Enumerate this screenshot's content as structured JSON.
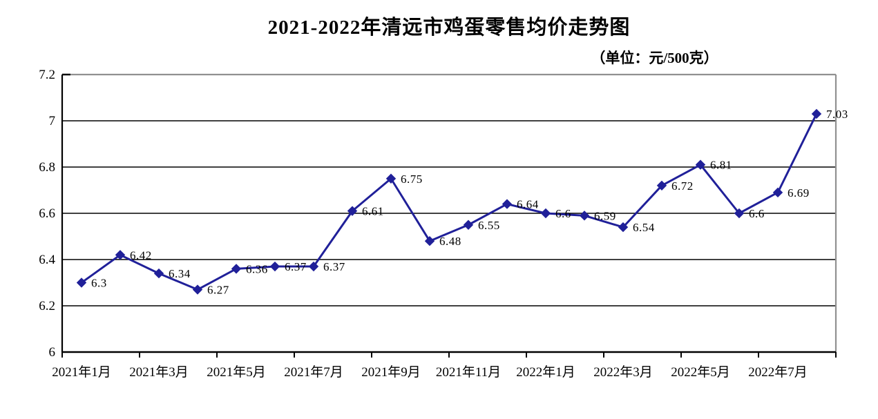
{
  "chart_data": {
    "type": "line",
    "title": "2021-2022年清远市鸡蛋零售均价走势图",
    "unit_label": "（单位：元/500克）",
    "values": [
      6.3,
      6.42,
      6.34,
      6.27,
      6.36,
      6.37,
      6.37,
      6.61,
      6.75,
      6.48,
      6.55,
      6.64,
      6.6,
      6.59,
      6.54,
      6.72,
      6.81,
      6.6,
      6.69,
      7.03
    ],
    "point_labels": [
      "6.3",
      "6.42",
      "6.34",
      "6.27",
      "6.36",
      "6.37",
      "6.37",
      "6.61",
      "6.75",
      "6.48",
      "6.55",
      "6.64",
      "6.6",
      "6.59",
      "6.54",
      "6.72",
      "6.81",
      "6.6",
      "6.69",
      "7.03"
    ],
    "x_tick_labels": [
      "2021年1月",
      "2021年3月",
      "2021年5月",
      "2021年7月",
      "2021年9月",
      "2021年11月",
      "2022年1月",
      "2022年3月",
      "2022年5月",
      "2022年7月"
    ],
    "y_tick_labels": [
      "7.2",
      "7",
      "6.8",
      "6.6",
      "6.4",
      "6.2",
      "6"
    ],
    "ylim": [
      6,
      7.2
    ],
    "y_step": 0.2,
    "grid": true,
    "legend": "none",
    "colors": {
      "line": "#202099",
      "marker": "#202099",
      "grid": "#000000",
      "axis": "#000000",
      "plot_border": "#909090",
      "text": "#000000"
    }
  }
}
